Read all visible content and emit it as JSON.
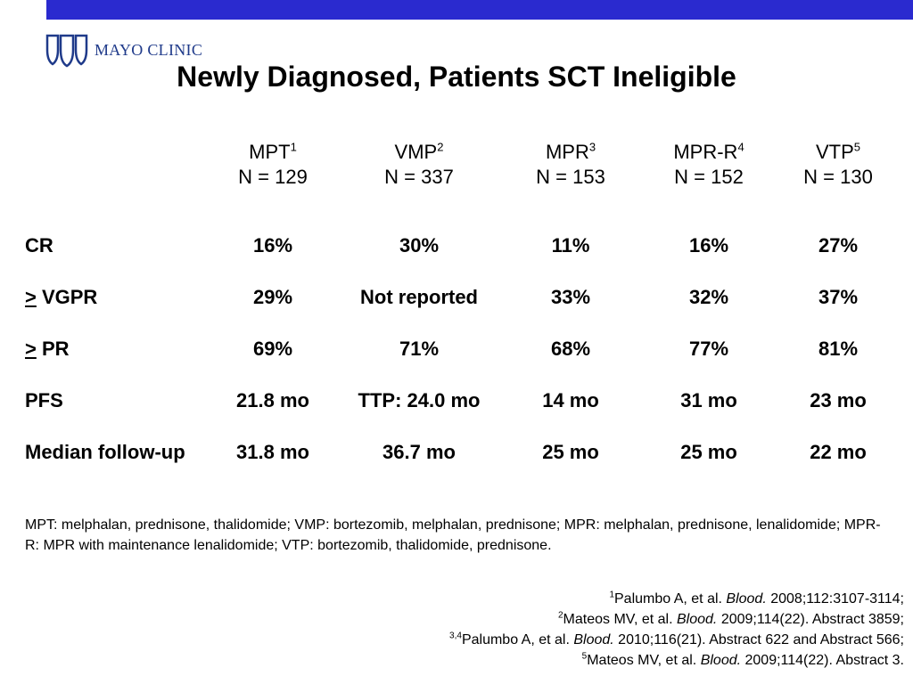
{
  "branding": {
    "logo_text": "MAYO CLINIC",
    "bar_color": "#2a2acf",
    "logo_color": "#1f3a8a"
  },
  "title": "Newly Diagnosed, Patients SCT Ineligible",
  "columns": [
    {
      "name": "MPT",
      "sup": "1",
      "n": "N = 129"
    },
    {
      "name": "VMP",
      "sup": "2",
      "n": "N = 337"
    },
    {
      "name": "MPR",
      "sup": "3",
      "n": "N = 153"
    },
    {
      "name": "MPR-R",
      "sup": "4",
      "n": "N = 152"
    },
    {
      "name": "VTP",
      "sup": "5",
      "n": "N = 130"
    }
  ],
  "rows": [
    {
      "prefix": "",
      "label": "CR",
      "values": [
        "16%",
        "30%",
        "11%",
        "16%",
        "27%"
      ]
    },
    {
      "prefix": ">",
      "label": " VGPR",
      "values": [
        "29%",
        "Not reported",
        "33%",
        "32%",
        "37%"
      ]
    },
    {
      "prefix": ">",
      "label": " PR",
      "values": [
        "69%",
        "71%",
        "68%",
        "77%",
        "81%"
      ]
    },
    {
      "prefix": "",
      "label": "PFS",
      "values": [
        "21.8 mo",
        "TTP: 24.0 mo",
        "14 mo",
        "31 mo",
        "23 mo"
      ]
    },
    {
      "prefix": "",
      "label": "Median follow-up",
      "values": [
        "31.8 mo",
        "36.7 mo",
        "25 mo",
        "25 mo",
        "22 mo"
      ]
    }
  ],
  "abbreviations": "MPT: melphalan, prednisone, thalidomide; VMP: bortezomib, melphalan, prednisone; MPR: melphalan, prednisone, lenalidomide; MPR-R: MPR with maintenance lenalidomide; VTP: bortezomib, thalidomide, prednisone.",
  "references": [
    {
      "sup": "1",
      "authors": "Palumbo A, et al. ",
      "journal": "Blood.",
      "detail": " 2008;112:3107-3114;"
    },
    {
      "sup": "2",
      "authors": "Mateos MV, et al. ",
      "journal": "Blood.",
      "detail": " 2009;114(22). Abstract 3859;"
    },
    {
      "sup": "3,4",
      "authors": "Palumbo A, et al. ",
      "journal": "Blood.",
      "detail": " 2010;116(21). Abstract 622 and Abstract 566;"
    },
    {
      "sup": "5",
      "authors": "Mateos MV, et al. ",
      "journal": "Blood.",
      "detail": " 2009;114(22). Abstract 3."
    }
  ]
}
